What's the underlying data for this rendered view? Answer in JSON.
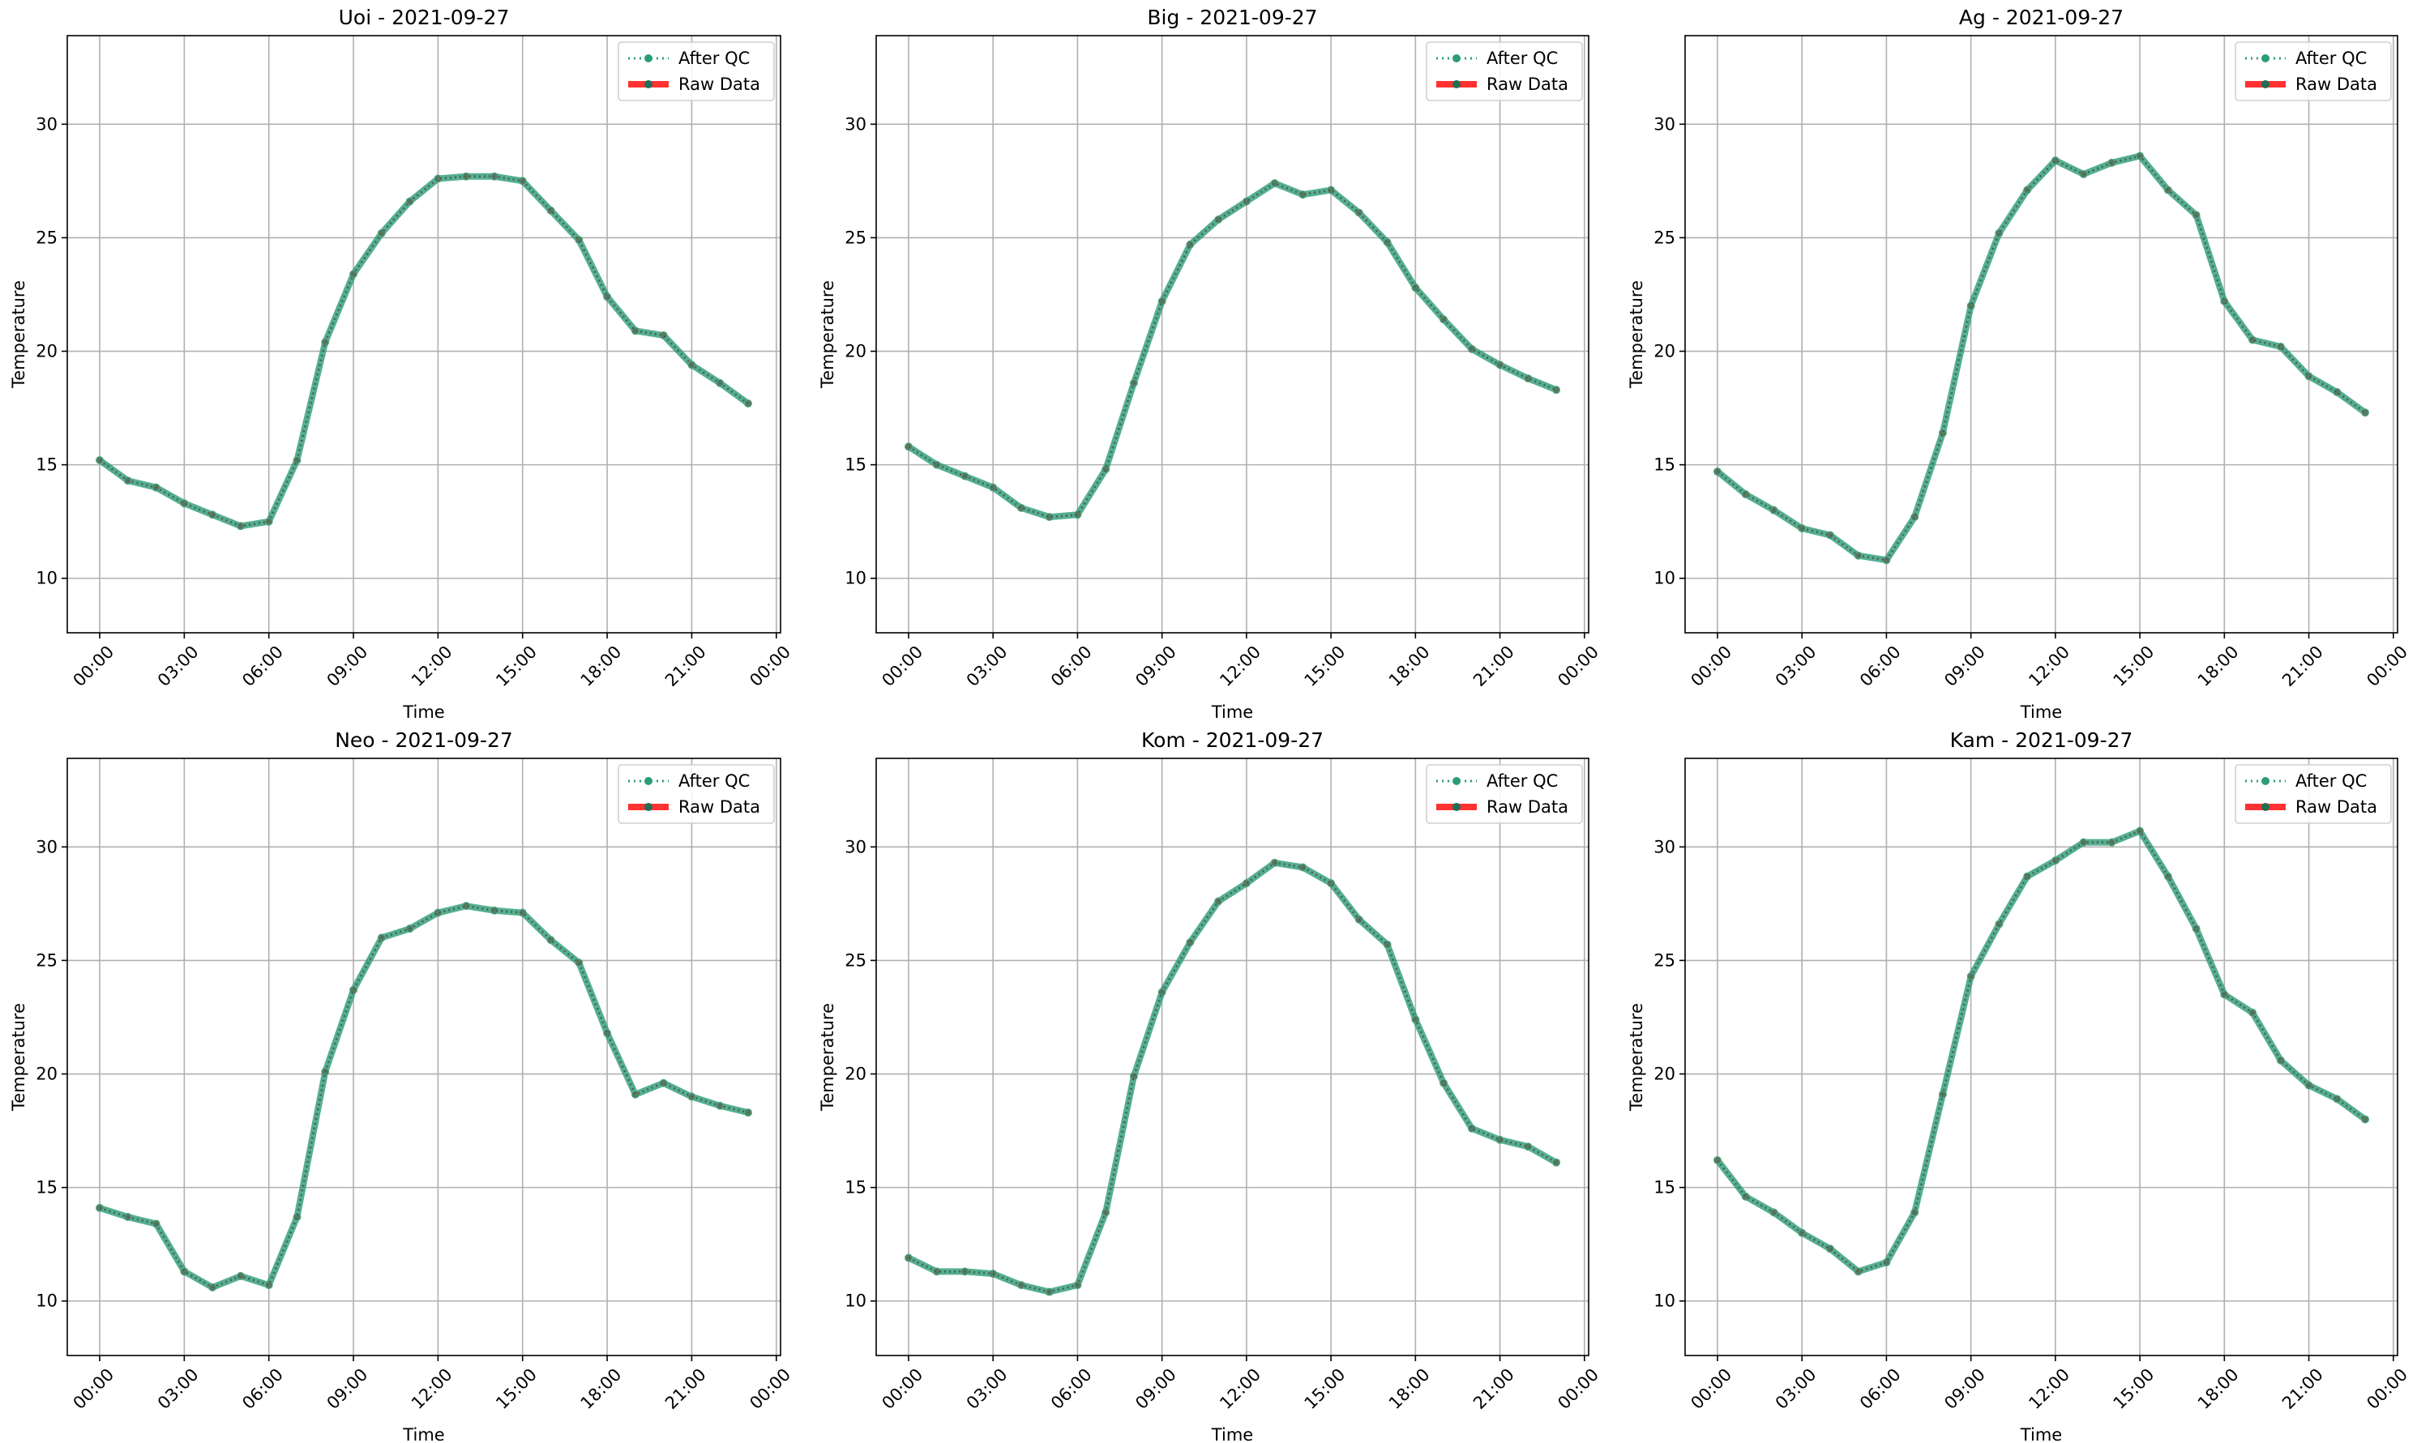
{
  "chart_data": [
    {
      "type": "line",
      "title": "Uoi - 2021-09-27",
      "xlabel": "Time",
      "ylabel": "Temperature",
      "x_hours": [
        0,
        1,
        2,
        3,
        4,
        5,
        6,
        7,
        8,
        9,
        10,
        11,
        12,
        13,
        14,
        15,
        16,
        17,
        18,
        19,
        20,
        21,
        22,
        23
      ],
      "xticks": [
        "00:00",
        "03:00",
        "06:00",
        "09:00",
        "12:00",
        "15:00",
        "18:00",
        "21:00",
        "00:00"
      ],
      "xlim_hours": [
        -1.15,
        24.15
      ],
      "ylim": [
        7.6,
        33.9
      ],
      "yticks": [
        10,
        15,
        20,
        25,
        30
      ],
      "grid": true,
      "legend": "top-right",
      "series": [
        {
          "name": "Raw Data",
          "color": "#ff0000",
          "style": "dotted-markers",
          "values": [
            15.2,
            14.3,
            14.0,
            13.3,
            12.8,
            12.3,
            12.5,
            15.2,
            20.4,
            23.4,
            25.2,
            26.6,
            27.6,
            27.7,
            27.7,
            27.5,
            26.2,
            24.9,
            22.4,
            20.9,
            20.7,
            19.4,
            18.6,
            17.7
          ]
        },
        {
          "name": "After QC",
          "color": "#2a9d78",
          "style": "solid-markers",
          "values": [
            15.2,
            14.3,
            14.0,
            13.3,
            12.8,
            12.3,
            12.5,
            15.2,
            20.4,
            23.4,
            25.2,
            26.6,
            27.6,
            27.7,
            27.7,
            27.5,
            26.2,
            24.9,
            22.4,
            20.9,
            20.7,
            19.4,
            18.6,
            17.7
          ]
        }
      ]
    },
    {
      "type": "line",
      "title": "Big - 2021-09-27",
      "xlabel": "Time",
      "ylabel": "Temperature",
      "x_hours": [
        0,
        1,
        2,
        3,
        4,
        5,
        6,
        7,
        8,
        9,
        10,
        11,
        12,
        13,
        14,
        15,
        16,
        17,
        18,
        19,
        20,
        21,
        22,
        23
      ],
      "xticks": [
        "00:00",
        "03:00",
        "06:00",
        "09:00",
        "12:00",
        "15:00",
        "18:00",
        "21:00",
        "00:00"
      ],
      "xlim_hours": [
        -1.15,
        24.15
      ],
      "ylim": [
        7.6,
        33.9
      ],
      "yticks": [
        10,
        15,
        20,
        25,
        30
      ],
      "grid": true,
      "legend": "top-right",
      "series": [
        {
          "name": "Raw Data",
          "color": "#ff0000",
          "style": "dotted-markers",
          "values": [
            15.8,
            15.0,
            14.5,
            14.0,
            13.1,
            12.7,
            12.8,
            14.8,
            18.6,
            22.2,
            24.7,
            25.8,
            26.6,
            27.4,
            26.9,
            27.1,
            26.1,
            24.8,
            22.8,
            21.4,
            20.1,
            19.4,
            18.8,
            18.3
          ]
        },
        {
          "name": "After QC",
          "color": "#2a9d78",
          "style": "solid-markers",
          "values": [
            15.8,
            15.0,
            14.5,
            14.0,
            13.1,
            12.7,
            12.8,
            14.8,
            18.6,
            22.2,
            24.7,
            25.8,
            26.6,
            27.4,
            26.9,
            27.1,
            26.1,
            24.8,
            22.8,
            21.4,
            20.1,
            19.4,
            18.8,
            18.3
          ]
        }
      ]
    },
    {
      "type": "line",
      "title": "Ag - 2021-09-27",
      "xlabel": "Time",
      "ylabel": "Temperature",
      "x_hours": [
        0,
        1,
        2,
        3,
        4,
        5,
        6,
        7,
        8,
        9,
        10,
        11,
        12,
        13,
        14,
        15,
        16,
        17,
        18,
        19,
        20,
        21,
        22,
        23
      ],
      "xticks": [
        "00:00",
        "03:00",
        "06:00",
        "09:00",
        "12:00",
        "15:00",
        "18:00",
        "21:00",
        "00:00"
      ],
      "xlim_hours": [
        -1.15,
        24.15
      ],
      "ylim": [
        7.6,
        33.9
      ],
      "yticks": [
        10,
        15,
        20,
        25,
        30
      ],
      "grid": true,
      "legend": "top-right",
      "series": [
        {
          "name": "Raw Data",
          "color": "#ff0000",
          "style": "dotted-markers",
          "values": [
            14.7,
            13.7,
            13.0,
            12.2,
            11.9,
            11.0,
            10.8,
            12.7,
            16.4,
            22.0,
            25.2,
            27.1,
            28.4,
            27.8,
            28.3,
            28.6,
            27.1,
            26.0,
            22.2,
            20.5,
            20.2,
            18.9,
            18.2,
            17.3
          ]
        },
        {
          "name": "After QC",
          "color": "#2a9d78",
          "style": "solid-markers",
          "values": [
            14.7,
            13.7,
            13.0,
            12.2,
            11.9,
            11.0,
            10.8,
            12.7,
            16.4,
            22.0,
            25.2,
            27.1,
            28.4,
            27.8,
            28.3,
            28.6,
            27.1,
            26.0,
            22.2,
            20.5,
            20.2,
            18.9,
            18.2,
            17.3
          ]
        }
      ]
    },
    {
      "type": "line",
      "title": "Neo - 2021-09-27",
      "xlabel": "Time",
      "ylabel": "Temperature",
      "x_hours": [
        0,
        1,
        2,
        3,
        4,
        5,
        6,
        7,
        8,
        9,
        10,
        11,
        12,
        13,
        14,
        15,
        16,
        17,
        18,
        19,
        20,
        21,
        22,
        23
      ],
      "xticks": [
        "00:00",
        "03:00",
        "06:00",
        "09:00",
        "12:00",
        "15:00",
        "18:00",
        "21:00",
        "00:00"
      ],
      "xlim_hours": [
        -1.15,
        24.15
      ],
      "ylim": [
        7.6,
        33.9
      ],
      "yticks": [
        10,
        15,
        20,
        25,
        30
      ],
      "grid": true,
      "legend": "top-right",
      "series": [
        {
          "name": "Raw Data",
          "color": "#ff0000",
          "style": "dotted-markers",
          "values": [
            14.1,
            13.7,
            13.4,
            11.3,
            10.6,
            11.1,
            10.7,
            13.7,
            20.1,
            23.7,
            26.0,
            26.4,
            27.1,
            27.4,
            27.2,
            27.1,
            25.9,
            24.9,
            21.8,
            19.1,
            19.6,
            19.0,
            18.6,
            18.3
          ]
        },
        {
          "name": "After QC",
          "color": "#2a9d78",
          "style": "solid-markers",
          "values": [
            14.1,
            13.7,
            13.4,
            11.3,
            10.6,
            11.1,
            10.7,
            13.7,
            20.1,
            23.7,
            26.0,
            26.4,
            27.1,
            27.4,
            27.2,
            27.1,
            25.9,
            24.9,
            21.8,
            19.1,
            19.6,
            19.0,
            18.6,
            18.3
          ]
        }
      ]
    },
    {
      "type": "line",
      "title": "Kom - 2021-09-27",
      "xlabel": "Time",
      "ylabel": "Temperature",
      "x_hours": [
        0,
        1,
        2,
        3,
        4,
        5,
        6,
        7,
        8,
        9,
        10,
        11,
        12,
        13,
        14,
        15,
        16,
        17,
        18,
        19,
        20,
        21,
        22,
        23
      ],
      "xticks": [
        "00:00",
        "03:00",
        "06:00",
        "09:00",
        "12:00",
        "15:00",
        "18:00",
        "21:00",
        "00:00"
      ],
      "xlim_hours": [
        -1.15,
        24.15
      ],
      "ylim": [
        7.6,
        33.9
      ],
      "yticks": [
        10,
        15,
        20,
        25,
        30
      ],
      "grid": true,
      "legend": "top-right",
      "series": [
        {
          "name": "Raw Data",
          "color": "#ff0000",
          "style": "dotted-markers",
          "values": [
            11.9,
            11.3,
            11.3,
            11.2,
            10.7,
            10.4,
            10.7,
            13.9,
            19.9,
            23.6,
            25.8,
            27.6,
            28.4,
            29.3,
            29.1,
            28.4,
            26.8,
            25.7,
            22.4,
            19.6,
            17.6,
            17.1,
            16.8,
            16.1
          ]
        },
        {
          "name": "After QC",
          "color": "#2a9d78",
          "style": "solid-markers",
          "values": [
            11.9,
            11.3,
            11.3,
            11.2,
            10.7,
            10.4,
            10.7,
            13.9,
            19.9,
            23.6,
            25.8,
            27.6,
            28.4,
            29.3,
            29.1,
            28.4,
            26.8,
            25.7,
            22.4,
            19.6,
            17.6,
            17.1,
            16.8,
            16.1
          ]
        }
      ]
    },
    {
      "type": "line",
      "title": "Kam - 2021-09-27",
      "xlabel": "Time",
      "ylabel": "Temperature",
      "x_hours": [
        0,
        1,
        2,
        3,
        4,
        5,
        6,
        7,
        8,
        9,
        10,
        11,
        12,
        13,
        14,
        15,
        16,
        17,
        18,
        19,
        20,
        21,
        22,
        23
      ],
      "xticks": [
        "00:00",
        "03:00",
        "06:00",
        "09:00",
        "12:00",
        "15:00",
        "18:00",
        "21:00",
        "00:00"
      ],
      "xlim_hours": [
        -1.15,
        24.15
      ],
      "ylim": [
        7.6,
        33.9
      ],
      "yticks": [
        10,
        15,
        20,
        25,
        30
      ],
      "grid": true,
      "legend": "top-right",
      "series": [
        {
          "name": "Raw Data",
          "color": "#ff0000",
          "style": "dotted-markers",
          "values": [
            16.2,
            14.6,
            13.9,
            13.0,
            12.3,
            11.3,
            11.7,
            13.9,
            19.1,
            24.3,
            26.6,
            28.7,
            29.4,
            30.2,
            30.2,
            30.7,
            28.7,
            26.4,
            23.5,
            22.7,
            20.6,
            19.5,
            18.9,
            18.0
          ]
        },
        {
          "name": "After QC",
          "color": "#2a9d78",
          "style": "solid-markers",
          "values": [
            16.2,
            14.6,
            13.9,
            13.0,
            12.3,
            11.3,
            11.7,
            13.9,
            19.1,
            24.3,
            26.6,
            28.7,
            29.4,
            30.2,
            30.2,
            30.7,
            28.7,
            26.4,
            23.5,
            22.7,
            20.6,
            19.5,
            18.9,
            18.0
          ]
        }
      ]
    }
  ]
}
